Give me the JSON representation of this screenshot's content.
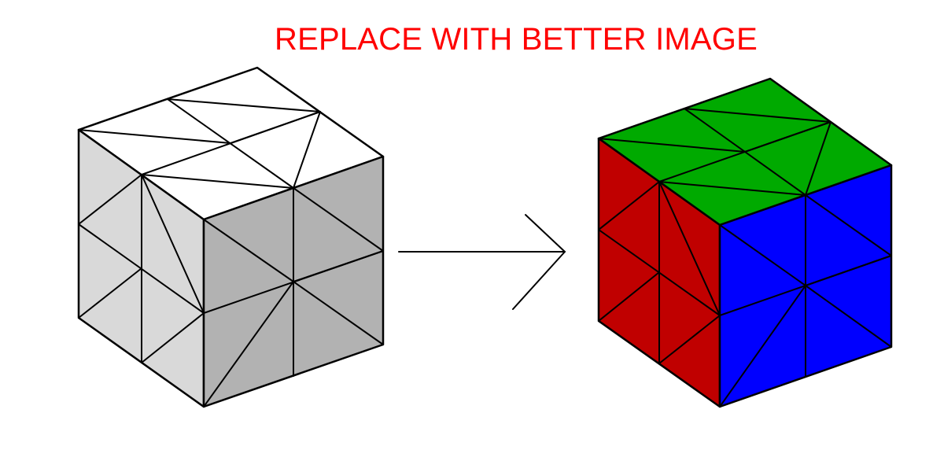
{
  "title": {
    "text": "REPLACE WITH BETTER IMAGE",
    "color": "#ff0000"
  },
  "left_cube": {
    "colors": {
      "top": "#ffffff",
      "left": "#d9d9d9",
      "right": "#b2b2b2",
      "edge": "#000000"
    }
  },
  "right_cube": {
    "colors": {
      "top": "#00aa00",
      "left": "#c00000",
      "right": "#0000ff",
      "edge": "#000000"
    }
  },
  "arrow": {
    "color": "#000000"
  }
}
